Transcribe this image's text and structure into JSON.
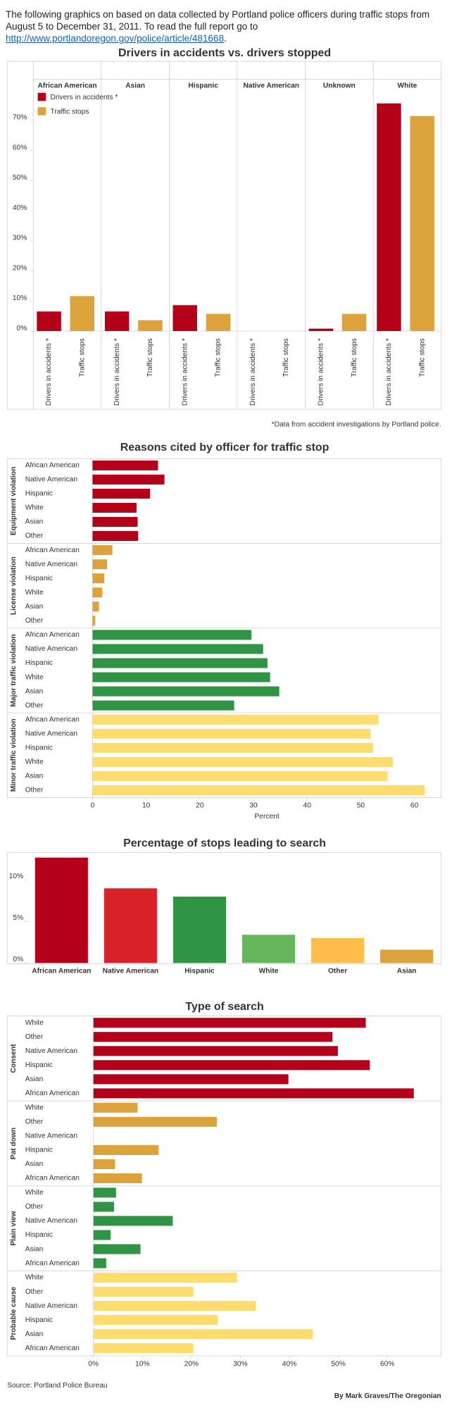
{
  "intro": {
    "text": "The following graphics on based on data collected by Portland police officers during traffic stops from August 5 to December 31, 2011. To read the full report go to ",
    "link": "http://www.portlandoregon.gov/police/article/481668",
    "text_end": "."
  },
  "chart_data": [
    {
      "type": "grouped_bar",
      "title": "Drivers in accidents vs. drivers stopped",
      "categories": [
        "African American",
        "Asian",
        "Hispanic",
        "Native American",
        "Unknown",
        "White"
      ],
      "series": [
        {
          "name": "Drivers in accidents *",
          "color": "#b5001a",
          "values": [
            6.5,
            6.5,
            8.6,
            0,
            0.8,
            75.6
          ]
        },
        {
          "name": "Traffic stops",
          "color": "#dca23c",
          "values": [
            11.6,
            3.6,
            5.7,
            0,
            5.7,
            71.4
          ]
        }
      ],
      "ylim": [
        0,
        80
      ],
      "yticks": [
        {
          "value": 0,
          "label": "0%"
        },
        {
          "value": 10,
          "label": "10%"
        },
        {
          "value": 20,
          "label": "20%"
        },
        {
          "value": 30,
          "label": "30%"
        },
        {
          "value": 40,
          "label": "40%"
        },
        {
          "value": 50,
          "label": "50%"
        },
        {
          "value": 60,
          "label": "60%"
        },
        {
          "value": 70,
          "label": "70%"
        }
      ],
      "legend": "top-left",
      "footnote": "*Data from accident investigations by Portland police."
    },
    {
      "type": "facet_hbar",
      "title": "Reasons cited by officer for traffic stop",
      "x_label": "Percent",
      "xlim": [
        0,
        65
      ],
      "xticks": [
        0,
        10,
        20,
        30,
        40,
        50,
        60
      ],
      "facets": [
        {
          "name": "Equipment violation",
          "color": "#b5001a",
          "categories": [
            "African American",
            "Native American",
            "Hispanic",
            "White",
            "Asian",
            "Other"
          ],
          "values": [
            12.2,
            13.4,
            10.7,
            8.2,
            8.4,
            8.5
          ]
        },
        {
          "name": "License violation",
          "color": "#dca23c",
          "categories": [
            "African American",
            "Native American",
            "Hispanic",
            "White",
            "Asian",
            "Other"
          ],
          "values": [
            3.7,
            2.7,
            2.2,
            1.8,
            1.2,
            0.5
          ]
        },
        {
          "name": "Major traffic violation",
          "color": "#2f9444",
          "categories": [
            "African American",
            "Native American",
            "Hispanic",
            "White",
            "Asian",
            "Other"
          ],
          "values": [
            29.6,
            31.8,
            32.6,
            33.1,
            34.8,
            26.4
          ]
        },
        {
          "name": "Minor traffic violation",
          "color": "#ffdc6e",
          "categories": [
            "African American",
            "Native American",
            "Hispanic",
            "White",
            "Asian",
            "Other"
          ],
          "values": [
            53.3,
            51.8,
            52.3,
            56.0,
            55.0,
            61.9
          ]
        }
      ]
    },
    {
      "type": "bar",
      "title": "Percentage of stops leading to search",
      "categories": [
        "African American",
        "Native American",
        "Hispanic",
        "White",
        "Other",
        "Asian"
      ],
      "values": [
        12.7,
        9.0,
        8.0,
        3.4,
        3.0,
        1.6
      ],
      "colors": [
        "#b5001a",
        "#d92128",
        "#2f9444",
        "#66b65e",
        "#ffbd4a",
        "#dca23c"
      ],
      "ylim": [
        0,
        13
      ],
      "yticks": [
        {
          "value": 0,
          "label": "0%"
        },
        {
          "value": 5,
          "label": "5%"
        },
        {
          "value": 10,
          "label": "10%"
        }
      ]
    },
    {
      "type": "facet_hbar",
      "title": "Type of search",
      "xlim": [
        0,
        71
      ],
      "xticks": [
        {
          "value": 0,
          "label": "0%"
        },
        {
          "value": 10,
          "label": "10%"
        },
        {
          "value": 20,
          "label": "20%"
        },
        {
          "value": 30,
          "label": "30%"
        },
        {
          "value": 40,
          "label": "40%"
        },
        {
          "value": 50,
          "label": "50%"
        },
        {
          "value": 60,
          "label": "60%"
        }
      ],
      "facets": [
        {
          "name": "Consent",
          "color": "#b5001a",
          "categories": [
            "White",
            "Other",
            "Native American",
            "Hispanic",
            "Asian",
            "African American"
          ],
          "values": [
            55.6,
            48.8,
            49.9,
            56.4,
            39.8,
            65.4
          ]
        },
        {
          "name": "Pat down",
          "color": "#dca23c",
          "categories": [
            "White",
            "Other",
            "Native American",
            "Hispanic",
            "Asian",
            "African American"
          ],
          "values": [
            9.0,
            25.2,
            0,
            13.3,
            4.4,
            9.9
          ]
        },
        {
          "name": "Plain view",
          "color": "#2f9444",
          "categories": [
            "White",
            "Other",
            "Native American",
            "Hispanic",
            "Asian",
            "African American"
          ],
          "values": [
            4.6,
            4.2,
            16.2,
            3.5,
            9.6,
            2.6
          ]
        },
        {
          "name": "Probable cause",
          "color": "#ffdc6e",
          "categories": [
            "White",
            "Other",
            "Native American",
            "Hispanic",
            "Asian",
            "African American"
          ],
          "values": [
            29.3,
            20.4,
            33.1,
            25.4,
            44.8,
            20.4
          ]
        }
      ]
    }
  ],
  "source": "Source: Portland Police Bureau",
  "byline": "By Mark Graves/The Oregonian"
}
